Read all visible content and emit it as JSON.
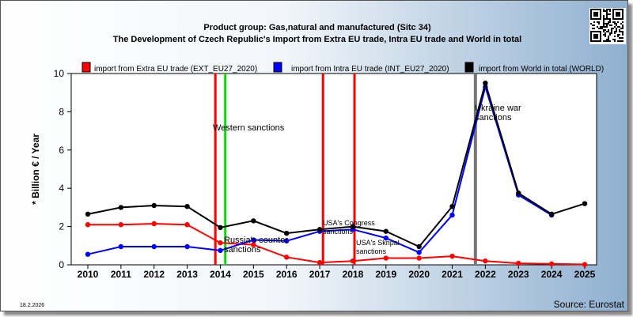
{
  "chart_data": {
    "type": "line",
    "title": "Product group: Gas,natural and manufactured (Sitc 34)",
    "subtitle": "The Development of Czech Republic's Import from Extra EU trade, Intra EU trade and World in total",
    "ylabel": "* Billion € / Year",
    "xlabel": "",
    "ylim": [
      0,
      10
    ],
    "yticks": [
      "0",
      "2",
      "4",
      "6",
      "8",
      "10"
    ],
    "categories": [
      "2010",
      "2011",
      "2012",
      "2013",
      "2014",
      "2015",
      "2016",
      "2017",
      "2018",
      "2019",
      "2020",
      "2021",
      "2022",
      "2023",
      "2024",
      "2025"
    ],
    "grid": false,
    "legend_position": "top",
    "series": [
      {
        "name": "import from Extra EU trade (EXT_EU27_2020)",
        "color": "#ff0000",
        "values": [
          2.1,
          2.1,
          2.15,
          2.1,
          1.15,
          1.05,
          0.4,
          0.12,
          0.2,
          0.35,
          0.35,
          0.45,
          0.2,
          0.08,
          0.05,
          0.02
        ]
      },
      {
        "name": "import from Intra EU trade (INT_EU27_2020)",
        "color": "#0000ff",
        "values": [
          0.55,
          0.95,
          0.95,
          0.95,
          0.75,
          1.3,
          1.25,
          1.75,
          1.85,
          1.4,
          0.65,
          2.6,
          9.3,
          3.65,
          2.6,
          null
        ]
      },
      {
        "name": "import from World in total (WORLD)",
        "color": "#000000",
        "values": [
          2.65,
          3.0,
          3.1,
          3.05,
          1.95,
          2.3,
          1.65,
          1.85,
          2.0,
          1.75,
          0.95,
          3.05,
          9.5,
          3.75,
          2.65,
          3.2
        ]
      }
    ],
    "event_lines": [
      {
        "at": 2013.85,
        "color": "#ff0000",
        "label": ""
      },
      {
        "at": 2014.15,
        "color": "#00dd00",
        "label": "Western sanctions"
      },
      {
        "at": 2014.15,
        "color": "#00dd00",
        "label": "Russia's counter sanctions"
      },
      {
        "at": 2017.1,
        "color": "#ff0000",
        "label": "USA's Congress sanctions"
      },
      {
        "at": 2018.05,
        "color": "#ff0000",
        "label": "USA's Skripal sanctions"
      },
      {
        "at": 2021.7,
        "color": "#777777",
        "label": "Ukraine war sanctions"
      }
    ]
  },
  "footer": {
    "date": "18.2.2026",
    "source": "Source: Eurostat"
  },
  "icons": {
    "qr": "qr-code-icon"
  }
}
